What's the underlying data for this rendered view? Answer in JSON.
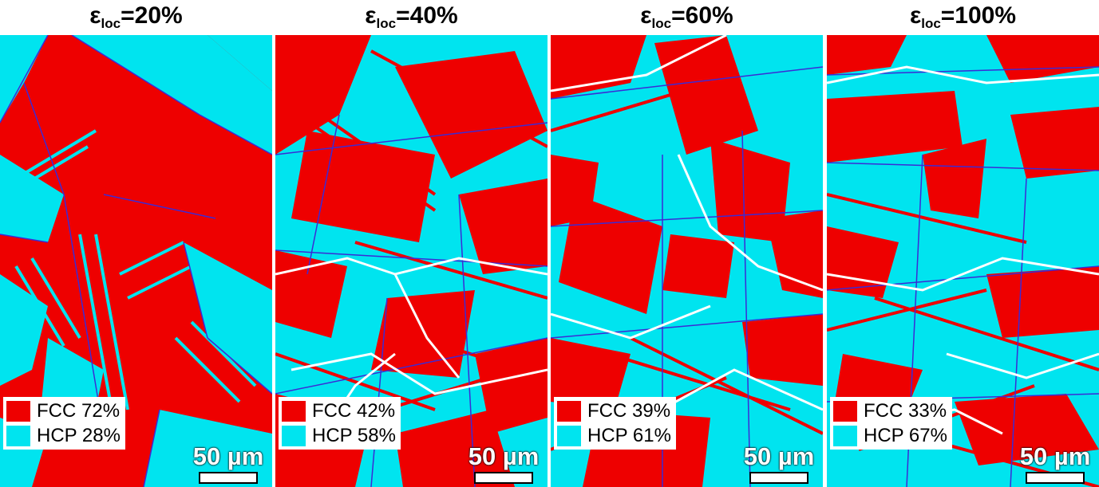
{
  "colors": {
    "fcc": "#ee0000",
    "hcp": "#00e4ef",
    "boundary": "#3b2bd6",
    "unindexed": "#ffffff"
  },
  "panels": [
    {
      "title_main": "ε",
      "title_sub": "loc",
      "title_value": "=20%",
      "fcc_label": "FCC 72%",
      "hcp_label": "HCP 28%",
      "fcc_fraction": 0.72,
      "hcp_fraction": 0.28,
      "scale_label": "50 µm"
    },
    {
      "title_main": "ε",
      "title_sub": "loc",
      "title_value": "=40%",
      "fcc_label": "FCC 42%",
      "hcp_label": "HCP 58%",
      "fcc_fraction": 0.42,
      "hcp_fraction": 0.58,
      "scale_label": "50 µm"
    },
    {
      "title_main": "ε",
      "title_sub": "loc",
      "title_value": "=60%",
      "fcc_label": "FCC 39%",
      "hcp_label": "HCP 61%",
      "fcc_fraction": 0.39,
      "hcp_fraction": 0.61,
      "scale_label": "50 µm"
    },
    {
      "title_main": "ε",
      "title_sub": "loc",
      "title_value": "=100%",
      "fcc_label": "FCC 33%",
      "hcp_label": "HCP 67%",
      "fcc_fraction": 0.33,
      "hcp_fraction": 0.67,
      "scale_label": "50 µm"
    }
  ]
}
